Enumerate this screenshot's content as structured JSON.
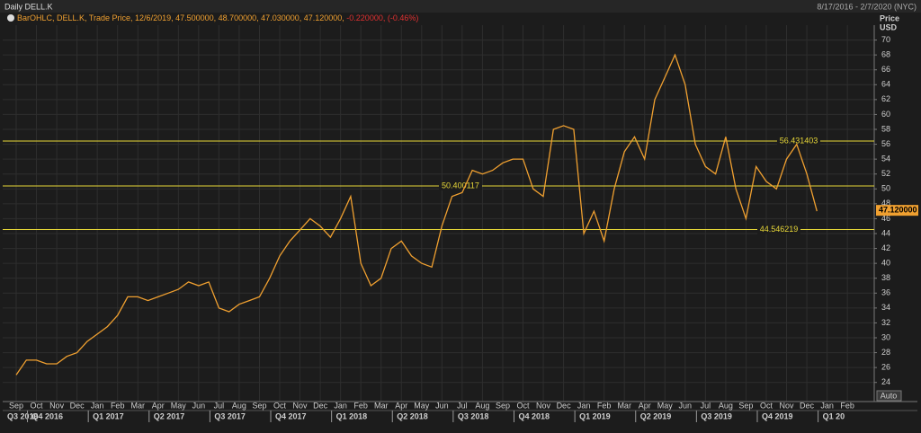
{
  "chart_data": {
    "type": "line",
    "title": "Daily DELL.K",
    "date_range": "8/17/2016 - 2/7/2020 (NYC)",
    "legend_text": "BarOHLC, DELL.K, Trade Price, 12/6/2019, 47.500000, 48.700000, 47.030000, 47.120000,",
    "legend_change": "-0.220000, (-0.46%)",
    "y_axis_title": [
      "Price",
      "USD"
    ],
    "auto_button": "Auto",
    "categories": [
      "Sep",
      null,
      "Oct",
      null,
      "Nov",
      null,
      "Dec",
      null,
      "Jan",
      null,
      "Feb",
      null,
      "Mar",
      null,
      "Apr",
      null,
      "May",
      null,
      "Jun",
      null,
      "Jul",
      null,
      "Aug",
      null,
      "Sep",
      null,
      "Oct",
      null,
      "Nov",
      null,
      "Dec",
      null,
      "Jan",
      null,
      "Feb",
      null,
      "Mar",
      null,
      "Apr",
      null,
      "May",
      null,
      "Jun",
      null,
      "Jul",
      null,
      "Aug",
      null,
      "Sep",
      null,
      "Oct",
      null,
      "Nov",
      null,
      "Dec",
      null,
      "Jan",
      null,
      "Feb",
      null,
      "Mar",
      null,
      "Apr",
      null,
      "May",
      null,
      "Jun",
      null,
      "Jul",
      null,
      "Aug",
      null,
      "Sep",
      null,
      "Oct",
      null,
      "Nov",
      null,
      "Dec",
      null,
      "Jan",
      null,
      "Feb",
      null
    ],
    "quarters": [
      "Q3 2016",
      "Q4 2016",
      "Q1 2017",
      "Q2 2017",
      "Q3 2017",
      "Q4 2017",
      "Q1 2018",
      "Q2 2018",
      "Q3 2018",
      "Q4 2018",
      "Q1 2019",
      "Q2 2019",
      "Q3 2019",
      "Q4 2019",
      "Q1 20"
    ],
    "series": [
      {
        "name": "DELL.K",
        "color": "#f0a030",
        "values": [
          25,
          27,
          27,
          26.5,
          26.5,
          27.5,
          28,
          29.5,
          30.5,
          31.5,
          33,
          35.5,
          35.5,
          35,
          35.5,
          36,
          36.5,
          37.5,
          37,
          37.5,
          34,
          33.5,
          34.5,
          35,
          35.5,
          38,
          41,
          43,
          44.5,
          46,
          45,
          43.5,
          46,
          49,
          40,
          37,
          38,
          42,
          43,
          41,
          40,
          39.5,
          45,
          49,
          49.5,
          52.5,
          52,
          52.5,
          53.5,
          54,
          54,
          50,
          49,
          58,
          58.5,
          58,
          44,
          47,
          43,
          50,
          55,
          57,
          54,
          62,
          65,
          68,
          64,
          56,
          53,
          52,
          57,
          50,
          46,
          53,
          51,
          50,
          54,
          56,
          52,
          47,
          null,
          null,
          null,
          null
        ]
      }
    ],
    "hlines": [
      56.431403,
      50.400117,
      44.546219
    ],
    "last_price": {
      "value": 47.12,
      "label": "47.120000"
    },
    "ylim": [
      23,
      72
    ],
    "yticks": [
      24,
      26,
      28,
      30,
      32,
      34,
      36,
      38,
      40,
      42,
      44,
      46,
      48,
      50,
      52,
      54,
      56,
      58,
      60,
      62,
      64,
      66,
      68,
      70
    ],
    "grid": true
  }
}
